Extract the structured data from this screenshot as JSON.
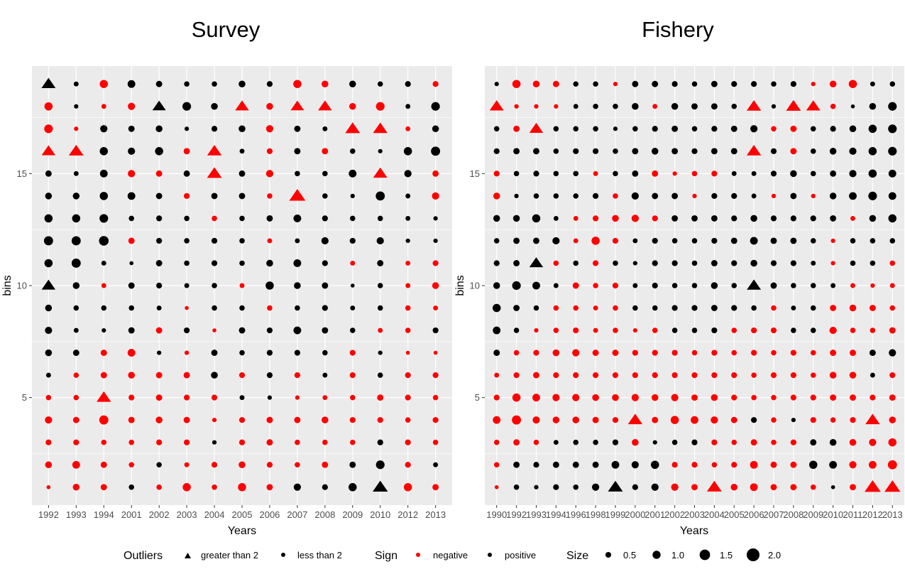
{
  "colors": {
    "negative": "#FF0000",
    "positive": "#000000",
    "panel_bg": "#EBEBEB",
    "grid": "#FFFFFF",
    "axis_text": "#4D4D4D"
  },
  "legend": {
    "outliers_title": "Outliers",
    "outliers_items": [
      {
        "label": "greater than 2",
        "shape": "triangle"
      },
      {
        "label": "less than 2",
        "shape": "circle"
      }
    ],
    "sign_title": "Sign",
    "sign_items": [
      {
        "label": "negative",
        "color": "negative"
      },
      {
        "label": "positive",
        "color": "positive"
      }
    ],
    "size_title": "Size",
    "size_items": [
      {
        "label": "0.5",
        "value": 0.5
      },
      {
        "label": "1.0",
        "value": 1.0
      },
      {
        "label": "1.5",
        "value": 1.5
      },
      {
        "label": "2.0",
        "value": 2.0
      }
    ]
  },
  "chart_data": [
    {
      "type": "scatter",
      "title": "Survey",
      "xlabel": "Years",
      "ylabel": "bins",
      "ylim": [
        0.2,
        19.8
      ],
      "yticks": [
        5,
        10,
        15
      ],
      "x": [
        "1992",
        "1993",
        "1994",
        "2001",
        "2002",
        "2003",
        "2004",
        "2005",
        "2006",
        "2007",
        "2008",
        "2009",
        "2010",
        "2012",
        "2013"
      ],
      "rows": [
        {
          "bin": 19,
          "values": [
            2.3,
            0.5,
            -1.2,
            1.1,
            0.8,
            0.6,
            0.6,
            0.9,
            0.7,
            -1.2,
            -0.9,
            0.9,
            0.6,
            0.7,
            -0.7
          ]
        },
        {
          "bin": 18,
          "values": [
            -1.2,
            0.4,
            -0.5,
            -1.0,
            2.1,
            1.3,
            0.9,
            -2.2,
            -0.9,
            -2.1,
            -2.2,
            -0.9,
            -1.3,
            0.5,
            1.3
          ]
        },
        {
          "bin": 17,
          "values": [
            -1.3,
            -0.4,
            1.0,
            0.8,
            0.9,
            0.4,
            0.7,
            0.9,
            -1.0,
            0.8,
            0.5,
            -2.5,
            -2.4,
            -0.5,
            0.9
          ]
        },
        {
          "bin": 16,
          "values": [
            -2.2,
            -2.5,
            1.2,
            1.0,
            1.2,
            -0.8,
            -2.4,
            0.5,
            -0.7,
            0.8,
            -0.8,
            0.6,
            0.4,
            1.2,
            1.4
          ]
        },
        {
          "bin": 15,
          "values": [
            0.8,
            0.5,
            1.1,
            -1.0,
            -0.8,
            0.8,
            -2.5,
            0.8,
            -1.0,
            0.6,
            0.6,
            1.1,
            -2.3,
            1.0,
            -0.8
          ]
        },
        {
          "bin": 14,
          "values": [
            0.9,
            0.9,
            1.2,
            1.1,
            0.8,
            -0.7,
            0.8,
            0.8,
            -0.6,
            -2.9,
            0.6,
            0.4,
            1.4,
            0.5,
            -1.0
          ]
        },
        {
          "bin": 13,
          "values": [
            1.2,
            1.2,
            1.3,
            0.6,
            0.7,
            0.6,
            -0.6,
            0.6,
            0.8,
            1.1,
            0.7,
            0.6,
            0.6,
            0.5,
            0.4
          ]
        },
        {
          "bin": 12,
          "values": [
            1.4,
            1.4,
            1.5,
            -0.8,
            0.7,
            0.6,
            0.7,
            0.6,
            -0.5,
            0.5,
            1.0,
            0.7,
            1.0,
            0.4,
            0.4
          ]
        },
        {
          "bin": 11,
          "values": [
            1.2,
            1.4,
            0.5,
            0.3,
            0.8,
            0.6,
            0.7,
            0.6,
            0.9,
            1.1,
            0.7,
            -0.5,
            0.8,
            -0.5,
            -0.7
          ]
        },
        {
          "bin": 10,
          "values": [
            2.2,
            0.9,
            -0.5,
            0.8,
            0.7,
            0.5,
            0.6,
            -0.5,
            1.2,
            0.9,
            0.8,
            0.3,
            0.6,
            -0.5,
            -0.9
          ]
        },
        {
          "bin": 9,
          "values": [
            0.9,
            0.6,
            0.6,
            0.6,
            0.5,
            -0.3,
            0.6,
            0.6,
            -0.6,
            0.6,
            0.7,
            0.5,
            0.6,
            -0.6,
            -0.5
          ]
        },
        {
          "bin": 8,
          "values": [
            1.0,
            0.5,
            0.4,
            0.8,
            -0.8,
            0.7,
            -0.3,
            0.8,
            0.7,
            1.1,
            0.8,
            0.6,
            -0.5,
            -0.6,
            0.7
          ]
        },
        {
          "bin": 7,
          "values": [
            0.9,
            0.8,
            -0.8,
            -1.1,
            0.4,
            -0.4,
            0.8,
            0.6,
            0.7,
            0.7,
            0.6,
            -0.7,
            0.4,
            -0.3,
            -0.3
          ]
        },
        {
          "bin": 6,
          "values": [
            0.5,
            -0.6,
            -0.8,
            -0.9,
            -0.8,
            -0.8,
            0.9,
            -0.7,
            0.7,
            -0.7,
            0.5,
            -0.7,
            0.6,
            -0.7,
            -0.7
          ]
        },
        {
          "bin": 5,
          "values": [
            -0.6,
            -0.6,
            -2.4,
            -0.7,
            -0.8,
            -0.7,
            -0.7,
            0.5,
            0.4,
            -0.4,
            -0.5,
            -0.6,
            -0.8,
            -0.7,
            -0.6
          ]
        },
        {
          "bin": 4,
          "values": [
            -1.0,
            -0.8,
            -1.4,
            -0.8,
            -0.9,
            -0.8,
            -0.4,
            -0.7,
            -0.8,
            -0.8,
            -0.9,
            -0.7,
            -0.7,
            -0.6,
            -0.7
          ]
        },
        {
          "bin": 3,
          "values": [
            -0.7,
            -0.7,
            -0.6,
            -0.6,
            -0.7,
            -0.7,
            0.4,
            -0.7,
            -0.8,
            -0.6,
            -0.6,
            -0.6,
            0.7,
            -0.7,
            -0.6
          ]
        },
        {
          "bin": 2,
          "values": [
            -0.9,
            -1.1,
            -0.8,
            -0.6,
            0.6,
            -0.5,
            -0.7,
            -0.9,
            -0.7,
            -0.6,
            -0.8,
            0.8,
            1.3,
            -0.7,
            0.5
          ]
        },
        {
          "bin": 1,
          "values": [
            -0.3,
            -0.9,
            -0.8,
            0.6,
            -0.6,
            -1.2,
            -0.6,
            -1.2,
            -0.8,
            1.0,
            0.7,
            1.2,
            2.6,
            -1.2,
            -0.8
          ]
        }
      ]
    },
    {
      "type": "scatter",
      "title": "Fishery",
      "xlabel": "Years",
      "ylabel": "bins",
      "ylim": [
        0.2,
        19.8
      ],
      "yticks": [
        5,
        10,
        15
      ],
      "x": [
        "1990",
        "1992",
        "1993",
        "1994",
        "1996",
        "1998",
        "1999",
        "2000",
        "2001",
        "2002",
        "2003",
        "2004",
        "2005",
        "2006",
        "2007",
        "2008",
        "2009",
        "2010",
        "2011",
        "2012",
        "2013"
      ],
      "rows": [
        {
          "bin": 19,
          "values": [
            0.4,
            -1.2,
            -0.9,
            -0.8,
            0.6,
            0.6,
            -0.4,
            0.8,
            0.8,
            0.7,
            0.6,
            0.8,
            0.7,
            0.7,
            0.6,
            0.7,
            -0.4,
            -0.9,
            -1.2,
            0.5,
            0.6
          ]
        },
        {
          "bin": 18,
          "values": [
            -2.3,
            -0.4,
            -0.4,
            -0.4,
            0.5,
            0.6,
            0.6,
            0.9,
            -0.5,
            0.9,
            0.8,
            0.8,
            0.6,
            -2.4,
            0.4,
            -2.5,
            -2.3,
            -0.6,
            0.3,
            0.9,
            1.3
          ]
        },
        {
          "bin": 17,
          "values": [
            0.6,
            -0.8,
            -2.2,
            0.6,
            0.6,
            0.6,
            0.4,
            0.6,
            0.7,
            0.8,
            0.6,
            0.7,
            0.8,
            1.0,
            -0.6,
            -0.8,
            0.6,
            0.7,
            0.9,
            1.2,
            1.3
          ]
        },
        {
          "bin": 16,
          "values": [
            0.7,
            0.8,
            0.8,
            0.6,
            0.7,
            0.7,
            0.6,
            0.8,
            0.9,
            0.8,
            0.7,
            0.8,
            0.8,
            -2.4,
            0.7,
            -0.8,
            0.6,
            0.9,
            1.0,
            1.2,
            1.3
          ]
        },
        {
          "bin": 15,
          "values": [
            -0.7,
            0.6,
            0.7,
            0.6,
            0.6,
            -0.5,
            0.6,
            0.8,
            -0.8,
            -0.4,
            -0.6,
            -0.7,
            0.5,
            0.5,
            0.7,
            0.9,
            0.6,
            0.8,
            1.0,
            1.2,
            1.1
          ]
        },
        {
          "bin": 14,
          "values": [
            -0.9,
            0.4,
            0.6,
            0.6,
            0.6,
            0.7,
            -0.6,
            1.0,
            0.8,
            0.8,
            -0.4,
            0.7,
            0.7,
            0.5,
            -0.4,
            0.8,
            -0.4,
            0.9,
            1.1,
            1.3,
            1.1
          ]
        },
        {
          "bin": 13,
          "values": [
            0.9,
            0.9,
            1.2,
            0.5,
            -0.5,
            -0.7,
            -0.9,
            -1.0,
            -0.7,
            0.8,
            0.8,
            0.8,
            0.7,
            0.9,
            0.7,
            0.7,
            0.7,
            0.8,
            -0.5,
            0.9,
            1.2
          ]
        },
        {
          "bin": 12,
          "values": [
            0.6,
            0.8,
            0.8,
            1.0,
            -0.5,
            -1.2,
            -0.7,
            0.5,
            0.7,
            0.6,
            0.6,
            0.7,
            0.8,
            1.1,
            0.8,
            0.8,
            0.6,
            -0.4,
            0.6,
            0.6,
            0.6
          ]
        },
        {
          "bin": 11,
          "values": [
            0.7,
            0.8,
            2.2,
            -0.6,
            0.6,
            -0.7,
            0.6,
            0.4,
            0.7,
            0.7,
            0.6,
            0.8,
            0.7,
            0.9,
            0.7,
            0.7,
            0.5,
            -0.4,
            0.6,
            0.6,
            -0.6
          ]
        },
        {
          "bin": 10,
          "values": [
            0.9,
            1.3,
            1.1,
            0.5,
            -0.8,
            -0.6,
            -0.7,
            0.5,
            0.7,
            0.6,
            0.6,
            0.9,
            0.6,
            2.3,
            0.8,
            0.6,
            0.6,
            0.5,
            -0.5,
            -0.4,
            -0.5
          ]
        },
        {
          "bin": 9,
          "values": [
            1.2,
            0.8,
            0.6,
            -0.6,
            -0.6,
            -0.5,
            -0.6,
            0.6,
            0.6,
            0.7,
            0.7,
            0.8,
            0.7,
            0.6,
            -0.6,
            0.5,
            0.6,
            -0.8,
            -0.9,
            -0.8,
            -0.6
          ]
        },
        {
          "bin": 8,
          "values": [
            1.1,
            0.6,
            -0.4,
            -0.6,
            -0.7,
            -0.5,
            -0.6,
            -0.4,
            -0.6,
            0.6,
            0.6,
            0.7,
            -0.6,
            -0.7,
            -0.7,
            0.6,
            0.6,
            -1.0,
            -0.6,
            -0.6,
            -0.8
          ]
        },
        {
          "bin": 7,
          "values": [
            0.8,
            -0.6,
            -0.7,
            -0.9,
            -1.0,
            -0.8,
            -0.8,
            -0.7,
            -0.7,
            -0.7,
            -0.6,
            -0.7,
            -0.6,
            -0.7,
            -0.6,
            -0.7,
            -0.6,
            -0.8,
            -0.8,
            0.8,
            1.0
          ]
        },
        {
          "bin": 6,
          "values": [
            -0.5,
            -0.7,
            -0.8,
            -0.7,
            -0.7,
            -0.7,
            -0.7,
            -0.7,
            -0.7,
            -0.7,
            -0.7,
            -0.7,
            -0.7,
            -0.6,
            -0.7,
            -0.7,
            -0.6,
            -0.9,
            -0.9,
            0.5,
            -0.7
          ]
        },
        {
          "bin": 5,
          "values": [
            -0.7,
            -1.2,
            -1.1,
            -1.0,
            -1.0,
            -0.9,
            -0.9,
            -1.0,
            -0.9,
            -1.0,
            -0.8,
            -0.9,
            -0.7,
            -0.6,
            -0.6,
            -0.7,
            -0.7,
            -0.8,
            -0.8,
            -0.7,
            -0.8
          ]
        },
        {
          "bin": 4,
          "values": [
            -1.1,
            -1.4,
            -1.0,
            -0.9,
            -0.9,
            -0.8,
            -0.7,
            -2.4,
            -0.8,
            -1.2,
            -1.1,
            -1.0,
            -0.8,
            0.7,
            -0.6,
            0.4,
            -0.7,
            -0.6,
            -0.7,
            -2.4,
            -0.9
          ]
        },
        {
          "bin": 3,
          "values": [
            -0.6,
            -0.8,
            -0.6,
            0.5,
            0.6,
            0.6,
            0.7,
            -0.9,
            0.4,
            0.6,
            0.7,
            -0.7,
            -0.6,
            -0.8,
            -0.6,
            -0.7,
            0.8,
            0.9,
            -0.9,
            -1.0,
            -1.2
          ]
        },
        {
          "bin": 2,
          "values": [
            -0.6,
            0.8,
            0.7,
            0.8,
            0.8,
            0.8,
            1.1,
            1.0,
            1.2,
            -0.7,
            -0.7,
            -0.6,
            -0.7,
            -1.1,
            -0.8,
            -0.8,
            1.2,
            1.1,
            -1.0,
            -1.1,
            -1.4
          ]
        },
        {
          "bin": 1,
          "values": [
            -0.3,
            0.6,
            0.4,
            0.7,
            0.6,
            1.0,
            2.5,
            0.7,
            1.0,
            -1.0,
            -0.8,
            -2.5,
            -0.9,
            -1.1,
            -0.8,
            -0.8,
            -0.6,
            0.3,
            -0.8,
            -2.9,
            -2.8
          ]
        }
      ]
    }
  ]
}
